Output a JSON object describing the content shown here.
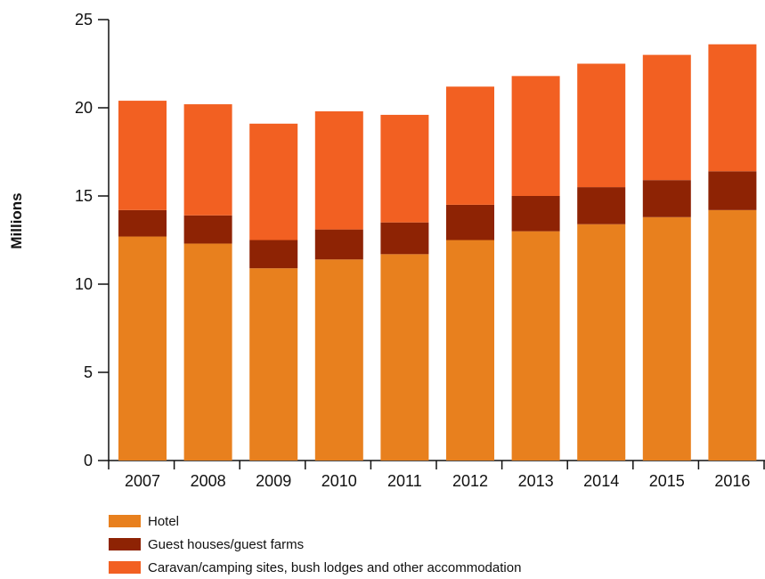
{
  "chart_data": {
    "type": "bar",
    "stacked": true,
    "categories": [
      "2007",
      "2008",
      "2009",
      "2010",
      "2011",
      "2012",
      "2013",
      "2014",
      "2015",
      "2016"
    ],
    "series": [
      {
        "name": "Hotel",
        "color": "#E8801E",
        "values": [
          12.7,
          12.3,
          10.9,
          11.4,
          11.7,
          12.5,
          13.0,
          13.4,
          13.8,
          14.2
        ]
      },
      {
        "name": "Guest houses/guest farms",
        "color": "#8E2304",
        "values": [
          1.5,
          1.6,
          1.6,
          1.7,
          1.8,
          2.0,
          2.0,
          2.1,
          2.1,
          2.2
        ]
      },
      {
        "name": "Caravan/camping sites, bush lodges and other accommodation",
        "color": "#F26022",
        "values": [
          6.2,
          6.3,
          6.6,
          6.7,
          6.1,
          6.7,
          6.8,
          7.0,
          7.1,
          7.2
        ]
      }
    ],
    "ylabel": "Millions",
    "ylim": [
      0,
      25
    ],
    "yticks": [
      0,
      5,
      10,
      15,
      20,
      25
    ],
    "grid": false,
    "legend_position": "bottom-left"
  }
}
